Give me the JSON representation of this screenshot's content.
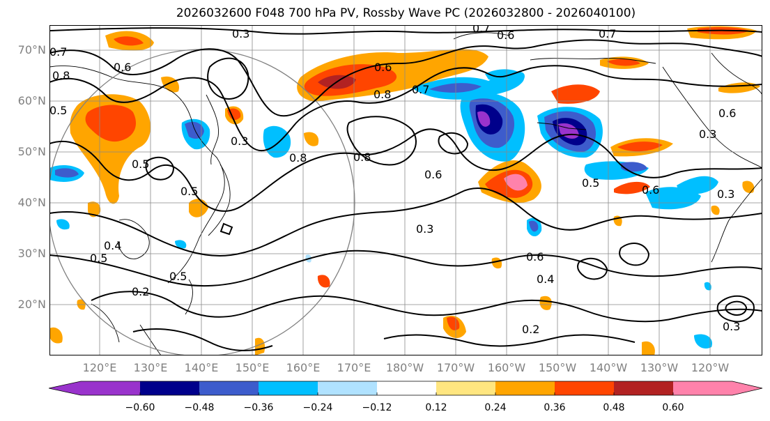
{
  "title": "2026032600 F048 700 hPa PV, Rossby Wave PC (2026032800 - 2026040100)",
  "axes": {
    "lat_labels": [
      "70°N",
      "60°N",
      "50°N",
      "40°N",
      "30°N",
      "20°N"
    ],
    "lon_labels": [
      "120°E",
      "130°E",
      "140°E",
      "150°E",
      "160°E",
      "170°E",
      "180°W",
      "170°W",
      "160°W",
      "150°W",
      "140°W",
      "130°W",
      "120°W"
    ]
  },
  "contour_labels": [
    "0.3",
    "0.7",
    "0.6",
    "0.7",
    "0.8",
    "0.6",
    "0.5",
    "0.6",
    "0.8",
    "0.7",
    "0.5",
    "0.3",
    "0.8",
    "0.6",
    "0.5",
    "0.3",
    "0.6",
    "0.4",
    "0.2",
    "0.3",
    "0.3",
    "0.5",
    "0.2",
    "0.6",
    "0.4",
    "0.3",
    "0.5",
    "0.5",
    "0.6",
    "0.7",
    "0.8"
  ],
  "colorbar": {
    "colors": [
      "#9933cc",
      "#00008b",
      "#3d5ccc",
      "#00bfff",
      "#b0e2ff",
      "#ffffff",
      "#ffe680",
      "#ffa500",
      "#ff4500",
      "#b22222",
      "#ff82ab"
    ],
    "tick_labels": [
      "−0.60",
      "−0.48",
      "−0.36",
      "−0.24",
      "−0.12",
      "0.12",
      "0.24",
      "0.36",
      "0.48",
      "0.60"
    ]
  }
}
